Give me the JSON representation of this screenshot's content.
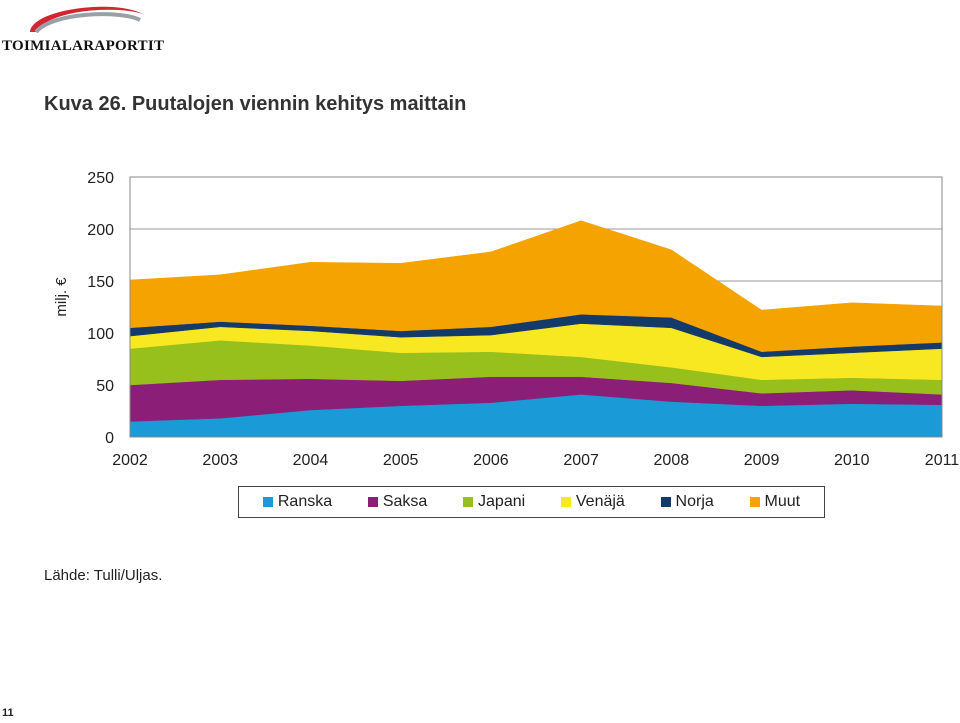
{
  "logo": {
    "text": "TOIMIALARAPORTIT",
    "swoosh_color": "#d22630"
  },
  "title": "Kuva 26. Puutalojen viennin kehitys maittain",
  "source": "Lähde: Tulli/Uljas.",
  "page_number": "11",
  "chart_data": {
    "type": "area",
    "stacked": true,
    "title": "",
    "xlabel": "",
    "ylabel": "milj. €",
    "x": [
      "2002",
      "2003",
      "2004",
      "2005",
      "2006",
      "2007",
      "2008",
      "2009",
      "2010",
      "2011"
    ],
    "ylim": [
      0,
      250
    ],
    "yticks": [
      0,
      50,
      100,
      150,
      200,
      250
    ],
    "grid": true,
    "legend_position": "bottom",
    "series": [
      {
        "name": "Ranska",
        "color": "#1a9ad6",
        "values": [
          15,
          18,
          26,
          30,
          33,
          41,
          34,
          30,
          32,
          31
        ]
      },
      {
        "name": "Saksa",
        "color": "#8b1f78",
        "values": [
          35,
          37,
          30,
          24,
          25,
          17,
          18,
          12,
          13,
          10
        ]
      },
      {
        "name": "Japani",
        "color": "#98c01c",
        "values": [
          35,
          38,
          32,
          27,
          24,
          19,
          15,
          13,
          12,
          14
        ]
      },
      {
        "name": "Venäjä",
        "color": "#f7e822",
        "values": [
          12,
          13,
          14,
          15,
          16,
          32,
          38,
          22,
          24,
          30
        ]
      },
      {
        "name": "Norja",
        "color": "#143a6a",
        "values": [
          8,
          5,
          5,
          6,
          8,
          9,
          10,
          5,
          6,
          6
        ]
      },
      {
        "name": "Muut",
        "color": "#f5a300",
        "values": [
          46,
          45,
          61,
          65,
          72,
          90,
          65,
          40,
          42,
          35
        ]
      }
    ]
  }
}
